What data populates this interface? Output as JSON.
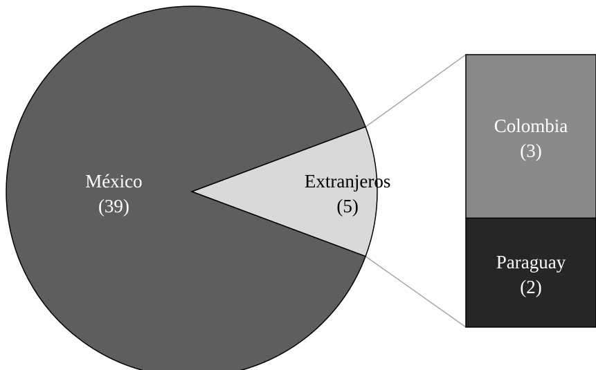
{
  "chart_data": {
    "type": "bar-of-pie",
    "title": "",
    "pie": {
      "slices": [
        {
          "label": "México",
          "value": 39,
          "value_text": "(39)",
          "color": "#5e5e5e",
          "text_color": "#ffffff"
        },
        {
          "label": "Extranjeros",
          "value": 5,
          "value_text": "(5)",
          "color": "#d9d9d9",
          "text_color": "#000000"
        }
      ]
    },
    "bar": {
      "parent": "Extranjeros",
      "segments": [
        {
          "label": "Colombia",
          "value": 3,
          "value_text": "(3)",
          "color": "#8a8a8a",
          "text_color": "#ffffff"
        },
        {
          "label": "Paraguay",
          "value": 2,
          "value_text": "(2)",
          "color": "#262626",
          "text_color": "#ffffff"
        }
      ]
    },
    "connector_color": "#a6a6a6",
    "legend": false
  }
}
